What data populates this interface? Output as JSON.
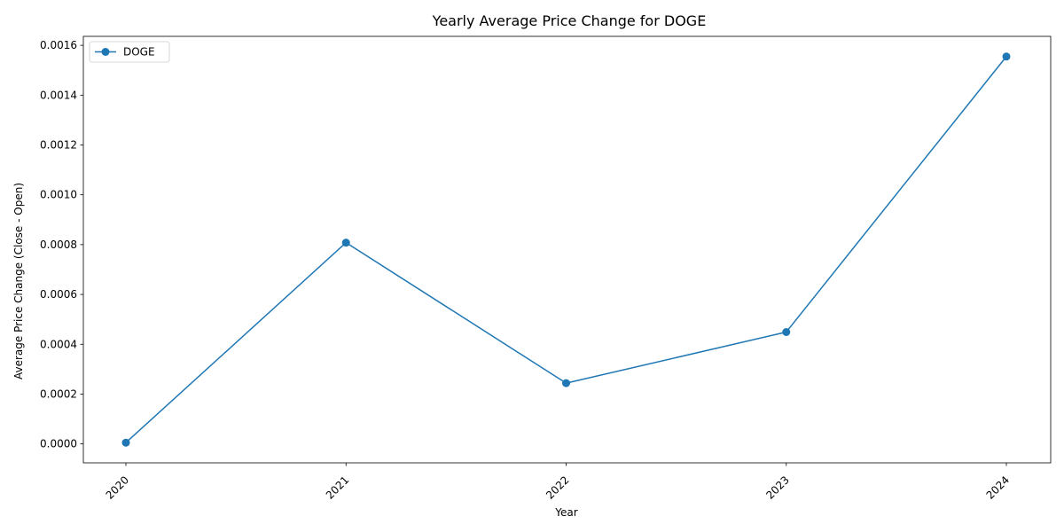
{
  "chart_data": {
    "type": "line",
    "title": "Yearly Average Price Change for DOGE",
    "xlabel": "Year",
    "ylabel": "Average Price Change (Close - Open)",
    "categories": [
      "2020",
      "2021",
      "2022",
      "2023",
      "2024"
    ],
    "series": [
      {
        "name": "DOGE",
        "values": [
          5e-06,
          0.000808,
          0.000244,
          0.000449,
          0.001555
        ],
        "color": "#1f77b4",
        "marker": "circle"
      }
    ],
    "ylim": [
      -7.6e-05,
      0.001636
    ],
    "yticks": [
      0,
      0.0002,
      0.0004,
      0.0006,
      0.0008,
      0.001,
      0.0012,
      0.0014,
      0.0016
    ],
    "ytick_labels": [
      "0.0000",
      "0.0002",
      "0.0004",
      "0.0006",
      "0.0008",
      "0.0010",
      "0.0012",
      "0.0014",
      "0.0016"
    ],
    "xtick_rotation": 45,
    "grid": false,
    "legend": "top-left"
  }
}
